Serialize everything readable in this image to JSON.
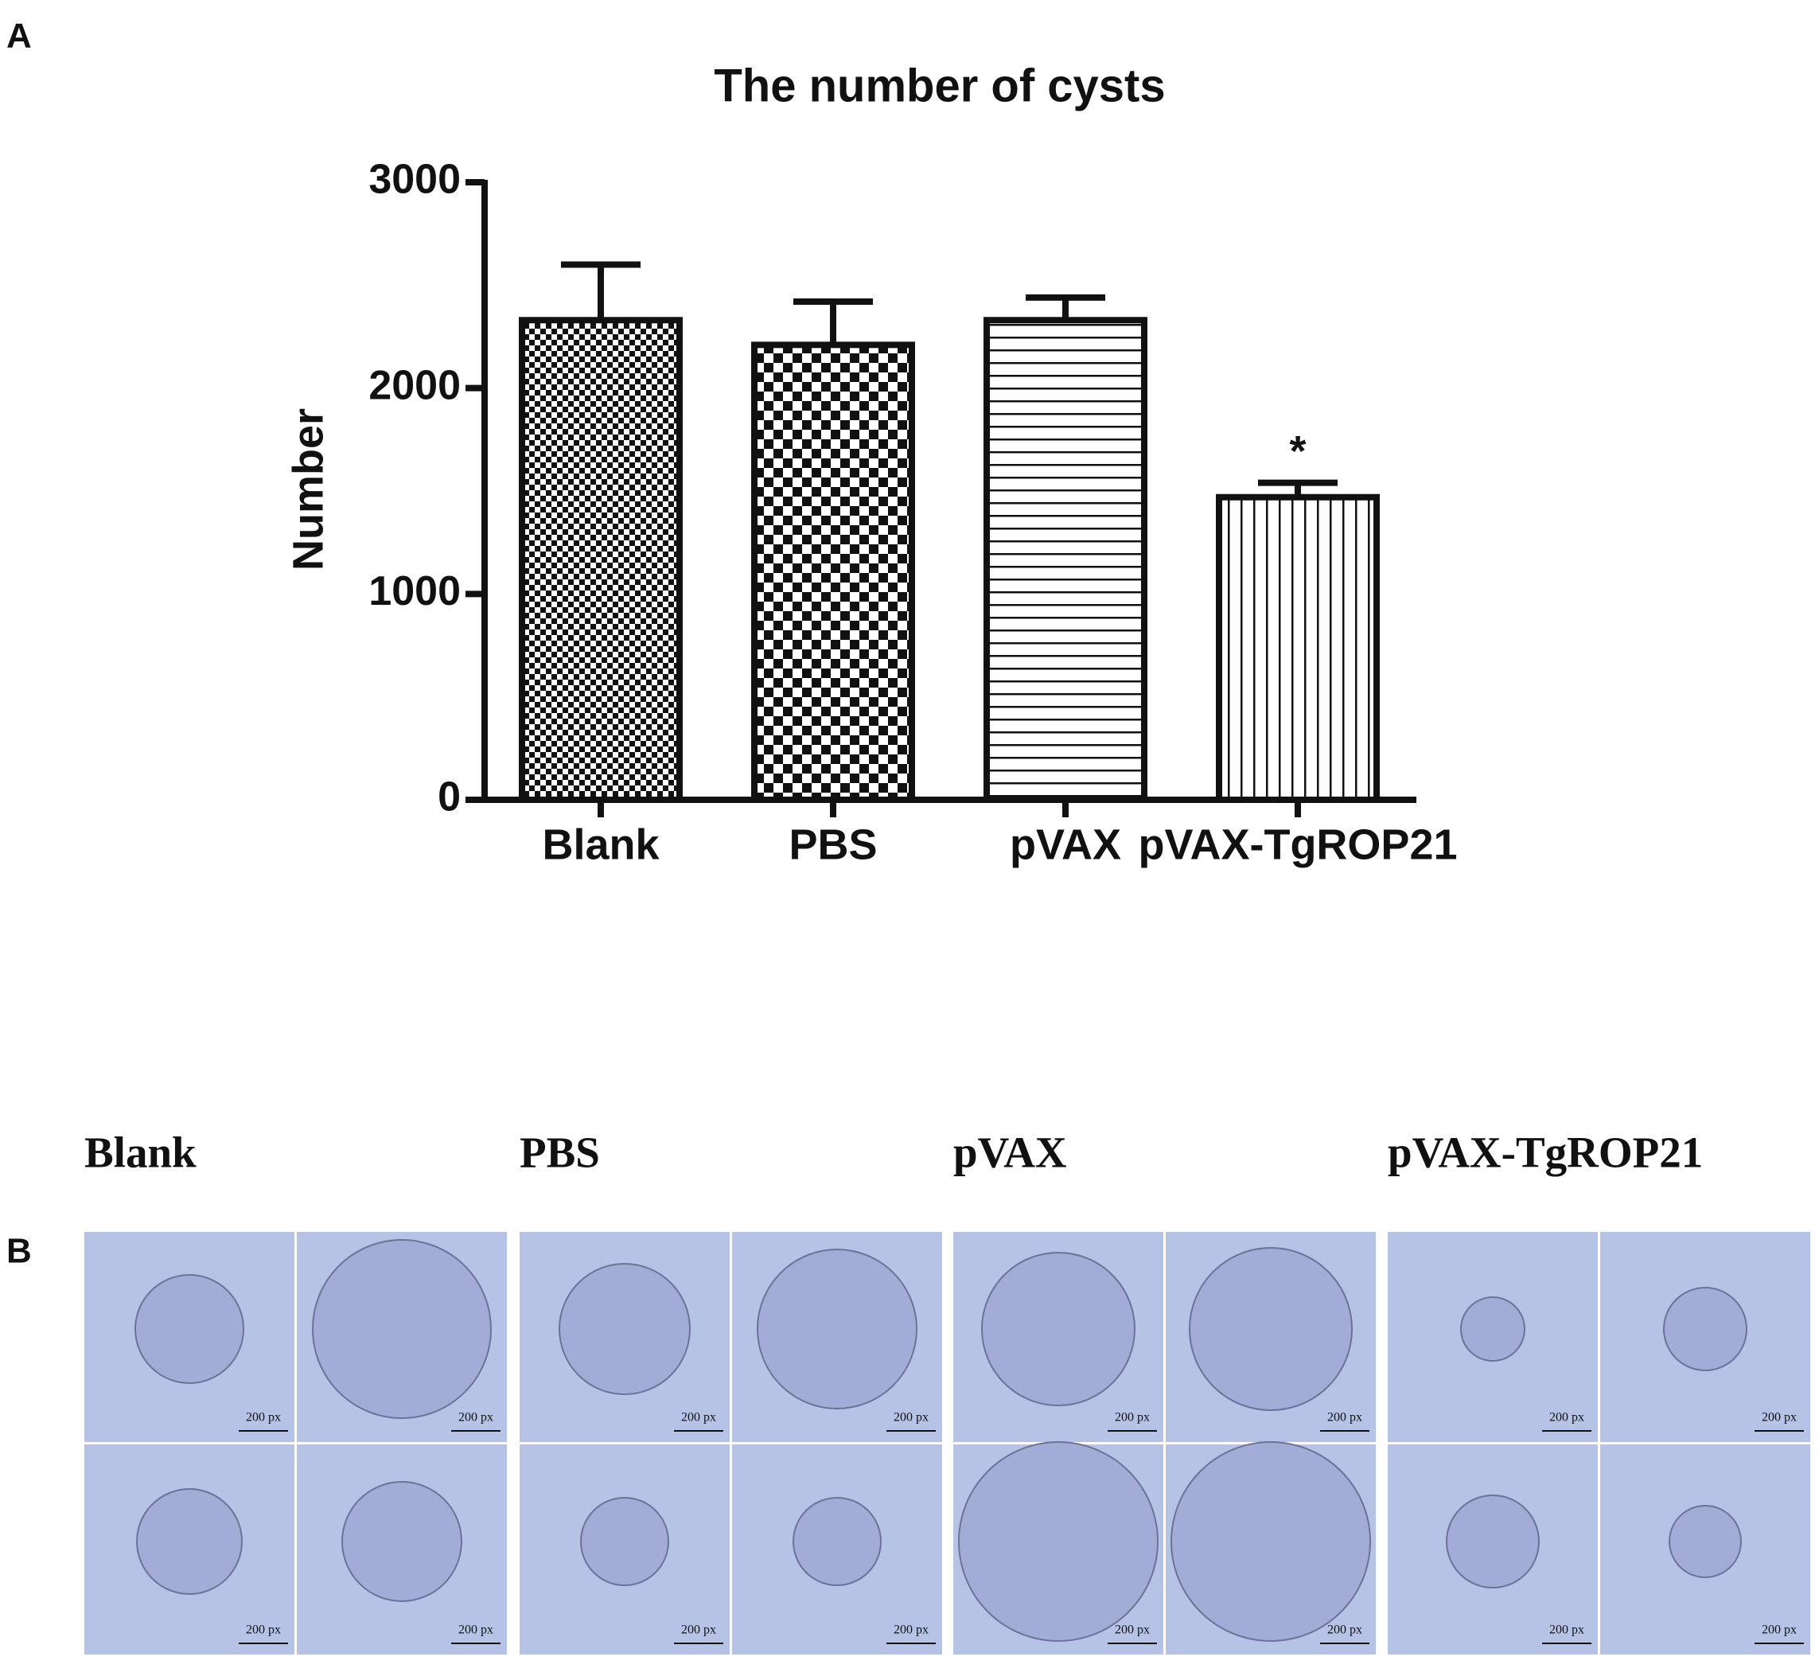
{
  "panel_labels": [
    "A",
    "B"
  ],
  "chart_data": {
    "type": "bar",
    "title": "The number of cysts",
    "y_label": "Number",
    "categories": [
      "Blank",
      "PBS",
      "pVAX",
      "pVAX-TgROP21"
    ],
    "values": [
      2330,
      2210,
      2330,
      1470
    ],
    "errors": [
      270,
      210,
      110,
      70
    ],
    "color": "#111111",
    "ylim": [
      0,
      3000
    ],
    "yticks": [
      0,
      1000,
      2000,
      3000
    ],
    "grid": false,
    "annotations": [
      {
        "category": "pVAX-TgROP21",
        "text": "*"
      }
    ]
  },
  "micrographs": {
    "groups": [
      "Blank",
      "PBS",
      "pVAX",
      "pVAX-TgROP21"
    ],
    "scale_bar_label": "200 px"
  }
}
